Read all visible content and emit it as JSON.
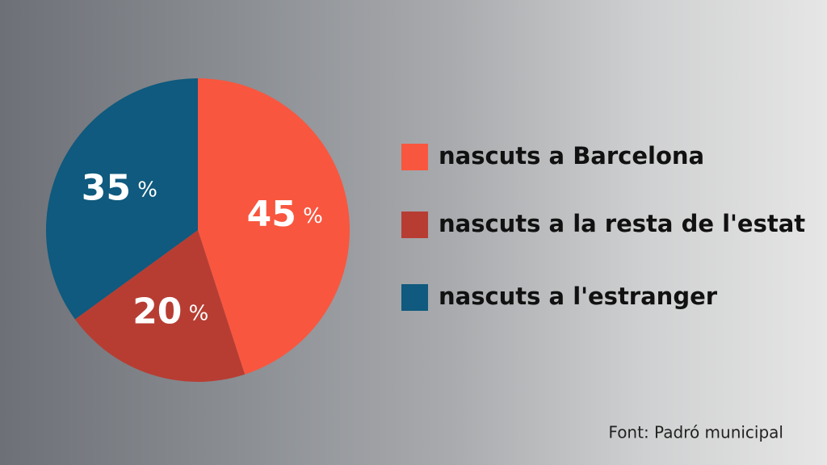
{
  "chart_data": {
    "type": "pie",
    "categories": [
      "nascuts a Barcelona",
      "nascuts a la resta de l'estat",
      "nascuts a l'estranger"
    ],
    "values": [
      45,
      20,
      35
    ],
    "value_labels": [
      "45 %",
      "20 %",
      "35 %"
    ],
    "colors": [
      "#f9563f",
      "#b73d33",
      "#0f5a7e"
    ],
    "source": "Font: Padró municipal"
  }
}
